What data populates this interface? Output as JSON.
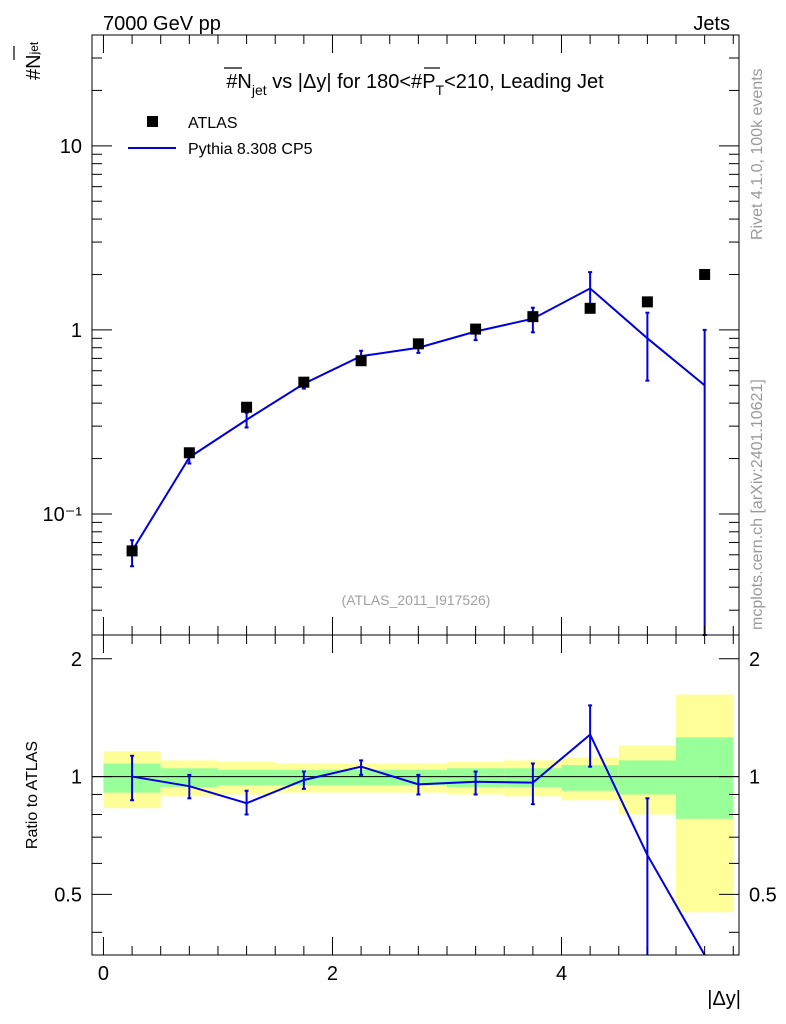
{
  "header": {
    "left": "7000 GeV pp",
    "right": "Jets"
  },
  "side_labels": {
    "rivet": "Rivet 4.1.0,  100k events",
    "mcplots": "mcplots.cern.ch [arXiv:2401.10621]"
  },
  "chart_data": [
    {
      "type": "scatter",
      "title": {
        "prefix": "#N",
        "sub": "jet",
        "mid": " vs |Δy| for 180<#",
        "p": "P",
        "psub": "T",
        "suffix": "<210, Leading Jet"
      },
      "ylabel": {
        "main": "#N",
        "sub": "jet"
      },
      "yscale": "log",
      "ylim": [
        0.022,
        40
      ],
      "xlim": [
        -0.1,
        5.55
      ],
      "yticks": [
        {
          "value": 10,
          "label": "10"
        },
        {
          "value": 1,
          "label": "1"
        },
        {
          "value": 0.1,
          "label": "10⁻¹"
        }
      ],
      "watermark": "(ATLAS_2011_I917526)",
      "legend": [
        {
          "label": "ATLAS",
          "marker": "square"
        },
        {
          "label": "Pythia 8.308 CP5",
          "marker": "line"
        }
      ],
      "series": [
        {
          "name": "ATLAS",
          "x": [
            0.25,
            0.75,
            1.25,
            1.75,
            2.25,
            2.75,
            3.25,
            3.75,
            4.25,
            4.75,
            5.25
          ],
          "y": [
            0.063,
            0.215,
            0.38,
            0.52,
            0.68,
            0.84,
            1.01,
            1.18,
            1.31,
            1.42,
            2.0
          ]
        },
        {
          "name": "Pythia 8.308 CP5",
          "x": [
            0.25,
            0.75,
            1.25,
            1.75,
            2.25,
            2.75,
            3.25,
            3.75,
            4.25,
            4.75,
            5.25
          ],
          "y": [
            0.063,
            0.203,
            0.325,
            0.51,
            0.72,
            0.8,
            0.98,
            1.15,
            1.68,
            0.9,
            0.5
          ],
          "yerr_low": [
            0.052,
            0.188,
            0.295,
            0.48,
            0.67,
            0.75,
            0.88,
            0.97,
            1.38,
            0.53,
            0.0
          ],
          "yerr_high": [
            0.072,
            0.218,
            0.355,
            0.54,
            0.77,
            0.85,
            1.06,
            1.32,
            2.06,
            1.24,
            1.0
          ]
        }
      ]
    },
    {
      "type": "line",
      "ylabel": "Ratio to ATLAS",
      "xlabel": "|Δy|",
      "ylim": [
        0.35,
        2.3
      ],
      "xlim": [
        -0.1,
        5.55
      ],
      "xticks": [
        0,
        2,
        4
      ],
      "yticks": [
        {
          "value": 0.5,
          "label": "0.5"
        },
        {
          "value": 1,
          "label": "1"
        },
        {
          "value": 2,
          "label": "2"
        }
      ],
      "bands": {
        "x_edges": [
          0,
          0.5,
          1.0,
          1.5,
          2.0,
          2.5,
          3.0,
          3.5,
          4.0,
          4.5,
          5.0,
          5.5
        ],
        "yellow_low": [
          0.83,
          0.89,
          0.9,
          0.91,
          0.91,
          0.91,
          0.9,
          0.89,
          0.87,
          0.8,
          0.45
        ],
        "yellow_high": [
          1.16,
          1.1,
          1.09,
          1.08,
          1.08,
          1.08,
          1.09,
          1.1,
          1.12,
          1.2,
          1.62
        ],
        "green_low": [
          0.91,
          0.94,
          0.95,
          0.95,
          0.95,
          0.95,
          0.94,
          0.94,
          0.92,
          0.9,
          0.78
        ],
        "green_high": [
          1.08,
          1.05,
          1.04,
          1.04,
          1.04,
          1.04,
          1.05,
          1.05,
          1.07,
          1.1,
          1.26
        ]
      },
      "series": [
        {
          "name": "Pythia 8.308 CP5 / ATLAS",
          "x": [
            0.25,
            0.75,
            1.25,
            1.75,
            2.25,
            2.75,
            3.25,
            3.75,
            4.25,
            4.75,
            5.25
          ],
          "y": [
            1.0,
            0.945,
            0.855,
            0.98,
            1.06,
            0.955,
            0.97,
            0.965,
            1.28,
            0.63,
            0.25
          ],
          "yerr_low": [
            0.87,
            0.88,
            0.8,
            0.93,
            1.01,
            0.9,
            0.9,
            0.85,
            1.06,
            0.0,
            0.0
          ],
          "yerr_high": [
            1.13,
            1.01,
            0.92,
            1.03,
            1.1,
            1.01,
            1.03,
            1.08,
            1.52,
            0.88,
            0.0
          ]
        }
      ]
    }
  ]
}
